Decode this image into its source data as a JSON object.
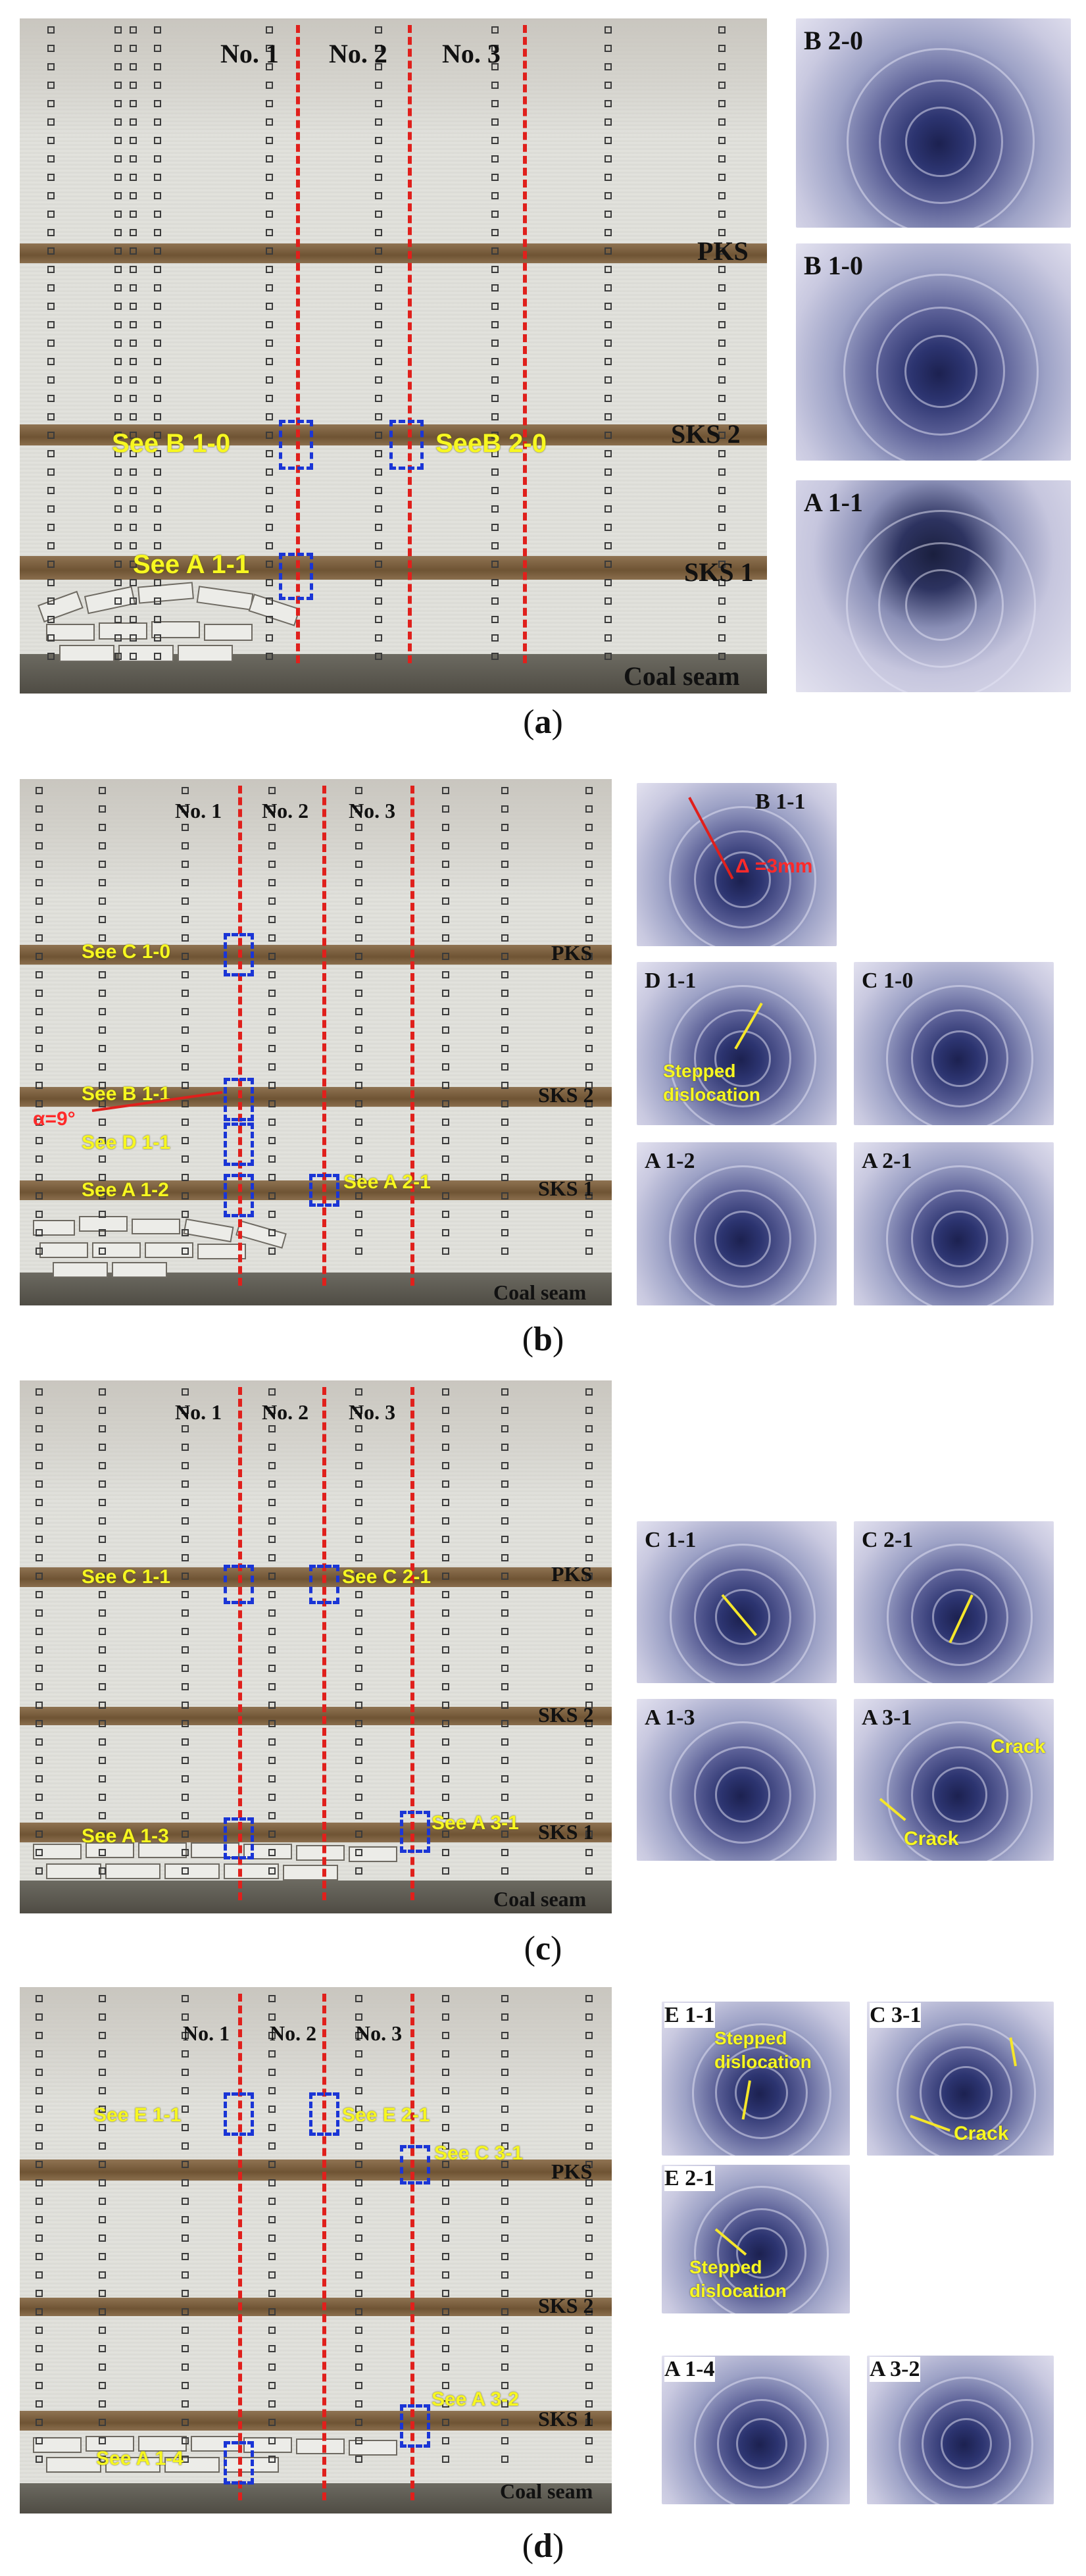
{
  "columns": {
    "no1": "No. 1",
    "no2": "No. 2",
    "no3": "No. 3"
  },
  "strata": {
    "pks": "PKS",
    "sks2": "SKS 2",
    "sks1": "SKS 1",
    "coal": "Coal seam"
  },
  "panel_a": {
    "caption": "a",
    "see": {
      "b10": "See B 1-0",
      "b20": "SeeB 2-0",
      "a11": "See A 1-1"
    },
    "bores": [
      "B 2-0",
      "B 1-0",
      "A 1-1"
    ]
  },
  "panel_b": {
    "caption": "b",
    "see": {
      "c10": "See C 1-0",
      "b11": "See B 1-1",
      "d11": "See D 1-1",
      "a12": "See A 1-2",
      "a21": "See A 2-1"
    },
    "angle": "α=9°",
    "bores": [
      "B 1-1",
      "D 1-1",
      "C 1-0",
      "A 1-2",
      "A 2-1"
    ],
    "delta": "Δ =3mm",
    "stepped_line1": "Stepped",
    "stepped_line2": "dislocation"
  },
  "panel_c": {
    "caption": "c",
    "see": {
      "c11": "See C 1-1",
      "c21": "See C 2-1",
      "a13": "See A 1-3",
      "a31": "See A 3-1"
    },
    "bores": [
      "C 1-1",
      "C 2-1",
      "A 1-3",
      "A 3-1"
    ],
    "crack": "Crack"
  },
  "panel_d": {
    "caption": "d",
    "see": {
      "e11": "See E 1-1",
      "e21": "See E 2-1",
      "c31": "See C 3-1",
      "a32": "See A 3-2",
      "a14": "See A 1-4"
    },
    "bores": [
      "E 1-1",
      "C 3-1",
      "E 2-1",
      "A 1-4",
      "A 3-2"
    ],
    "stepped_line1": "Stepped",
    "stepped_line2": "dislocation",
    "crack": "Crack"
  }
}
